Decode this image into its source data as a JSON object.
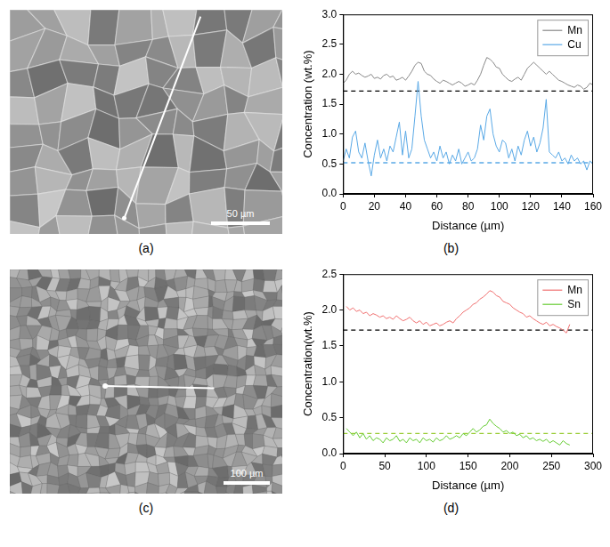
{
  "images": [
    {
      "label": "(a)",
      "scale_bar": "50 µm"
    },
    {
      "label": "(c)",
      "scale_bar": "100 µm"
    }
  ],
  "chart_data": [
    {
      "type": "line",
      "label": "(b)",
      "xlabel": "Distance (µm)",
      "ylabel": "Concentration (wt.%)",
      "x": [
        0,
        2,
        4,
        6,
        8,
        10,
        12,
        14,
        16,
        18,
        20,
        22,
        24,
        26,
        28,
        30,
        32,
        34,
        36,
        38,
        40,
        42,
        44,
        46,
        48,
        50,
        52,
        54,
        56,
        58,
        60,
        62,
        64,
        66,
        68,
        70,
        72,
        74,
        76,
        78,
        80,
        82,
        84,
        86,
        88,
        90,
        92,
        94,
        96,
        98,
        100,
        102,
        104,
        106,
        108,
        110,
        112,
        114,
        116,
        118,
        120,
        122,
        124,
        126,
        128,
        130,
        132,
        134,
        136,
        138,
        140,
        142,
        144,
        146,
        148,
        150,
        152,
        154,
        156,
        158,
        160
      ],
      "series": [
        {
          "name": "Mn",
          "color": "#888888",
          "values": [
            1.85,
            1.9,
            2.0,
            2.05,
            2.0,
            2.02,
            1.98,
            1.95,
            1.97,
            2.0,
            1.93,
            1.95,
            1.92,
            1.98,
            2.0,
            1.95,
            1.97,
            1.9,
            1.92,
            1.95,
            1.9,
            1.97,
            2.05,
            2.15,
            2.2,
            2.18,
            2.05,
            2.0,
            1.98,
            1.92,
            1.88,
            1.85,
            1.9,
            1.88,
            1.85,
            1.82,
            1.85,
            1.88,
            1.85,
            1.8,
            1.82,
            1.85,
            1.82,
            1.9,
            2.0,
            2.15,
            2.28,
            2.25,
            2.2,
            2.12,
            2.1,
            2.0,
            1.95,
            1.9,
            1.88,
            1.92,
            1.95,
            1.9,
            2.0,
            2.1,
            2.15,
            2.2,
            2.15,
            2.1,
            2.05,
            2.0,
            2.05,
            2.0,
            1.95,
            1.9,
            1.88,
            1.85,
            1.82,
            1.8,
            1.78,
            1.82,
            1.8,
            1.75,
            1.78,
            1.85,
            1.82
          ]
        },
        {
          "name": "Cu",
          "color": "#5aa9e6",
          "values": [
            0.55,
            0.75,
            0.6,
            0.95,
            1.05,
            0.7,
            0.6,
            0.85,
            0.55,
            0.3,
            0.65,
            0.9,
            0.6,
            0.75,
            0.55,
            0.8,
            0.7,
            0.95,
            1.2,
            0.65,
            1.05,
            0.6,
            0.75,
            1.3,
            1.88,
            1.3,
            0.9,
            0.75,
            0.6,
            0.7,
            0.55,
            0.8,
            0.6,
            0.7,
            0.5,
            0.65,
            0.55,
            0.75,
            0.5,
            0.6,
            0.7,
            0.55,
            0.6,
            0.75,
            1.15,
            0.9,
            1.3,
            1.42,
            1.0,
            0.8,
            0.7,
            0.9,
            0.85,
            0.6,
            0.75,
            0.55,
            0.8,
            0.65,
            0.9,
            1.05,
            0.8,
            0.95,
            0.7,
            0.85,
            1.1,
            1.58,
            0.7,
            0.65,
            0.6,
            0.7,
            0.55,
            0.6,
            0.5,
            0.65,
            0.55,
            0.6,
            0.5,
            0.55,
            0.4,
            0.55,
            0.5
          ]
        }
      ],
      "reference_lines": [
        {
          "value": 1.72,
          "color": "#000000",
          "line_style": "dashed"
        },
        {
          "value": 0.52,
          "color": "#5aa9e6",
          "line_style": "dashed"
        }
      ],
      "xlim": [
        0,
        160
      ],
      "xticks": [
        0,
        20,
        40,
        60,
        80,
        100,
        120,
        140,
        160
      ],
      "ylim": [
        0,
        3
      ],
      "yticks": [
        {
          "value": 0,
          "label": "0.0"
        },
        {
          "value": 0.5,
          "label": "0.5"
        },
        {
          "value": 1,
          "label": "1.0"
        },
        {
          "value": 1.5,
          "label": "1.5"
        },
        {
          "value": 2,
          "label": "2.0"
        },
        {
          "value": 2.5,
          "label": "2.5"
        },
        {
          "value": 3,
          "label": "3.0"
        }
      ],
      "legend": "upper right"
    },
    {
      "type": "line",
      "label": "(d)",
      "xlabel": "Distance (µm)",
      "ylabel": "Concentration(wt.%)",
      "x": [
        4,
        8,
        12,
        16,
        20,
        24,
        28,
        32,
        36,
        40,
        44,
        48,
        52,
        56,
        60,
        64,
        68,
        72,
        76,
        80,
        84,
        88,
        92,
        96,
        100,
        104,
        108,
        112,
        116,
        120,
        124,
        128,
        132,
        136,
        140,
        144,
        148,
        152,
        156,
        160,
        164,
        168,
        172,
        176,
        180,
        184,
        188,
        192,
        196,
        200,
        204,
        208,
        212,
        216,
        220,
        224,
        228,
        232,
        236,
        240,
        244,
        248,
        252,
        256,
        260,
        264,
        268,
        272
      ],
      "series": [
        {
          "name": "Mn",
          "color": "#f07070",
          "values": [
            2.05,
            2.0,
            2.03,
            1.98,
            2.0,
            1.95,
            1.97,
            1.92,
            1.95,
            1.93,
            1.9,
            1.92,
            1.88,
            1.9,
            1.87,
            1.92,
            1.88,
            1.85,
            1.87,
            1.9,
            1.85,
            1.82,
            1.85,
            1.8,
            1.83,
            1.78,
            1.8,
            1.82,
            1.78,
            1.8,
            1.83,
            1.85,
            1.82,
            1.88,
            1.92,
            1.97,
            2.0,
            2.03,
            2.08,
            2.1,
            2.15,
            2.18,
            2.22,
            2.27,
            2.25,
            2.2,
            2.18,
            2.12,
            2.1,
            2.08,
            2.03,
            2.0,
            1.97,
            1.95,
            1.9,
            1.92,
            1.88,
            1.85,
            1.82,
            1.8,
            1.83,
            1.78,
            1.8,
            1.77,
            1.75,
            1.72,
            1.68,
            1.8
          ]
        },
        {
          "name": "Sn",
          "color": "#66cc33",
          "values": [
            0.35,
            0.3,
            0.25,
            0.3,
            0.22,
            0.28,
            0.2,
            0.25,
            0.18,
            0.22,
            0.2,
            0.15,
            0.22,
            0.18,
            0.2,
            0.25,
            0.17,
            0.2,
            0.15,
            0.22,
            0.18,
            0.2,
            0.15,
            0.22,
            0.18,
            0.2,
            0.16,
            0.22,
            0.18,
            0.2,
            0.25,
            0.2,
            0.22,
            0.25,
            0.22,
            0.28,
            0.25,
            0.3,
            0.35,
            0.3,
            0.33,
            0.38,
            0.4,
            0.48,
            0.42,
            0.38,
            0.35,
            0.3,
            0.32,
            0.28,
            0.3,
            0.25,
            0.27,
            0.22,
            0.25,
            0.2,
            0.22,
            0.18,
            0.2,
            0.17,
            0.2,
            0.15,
            0.18,
            0.15,
            0.12,
            0.18,
            0.14,
            0.12
          ]
        }
      ],
      "reference_lines": [
        {
          "value": 1.72,
          "color": "#000000",
          "line_style": "dashed"
        },
        {
          "value": 0.28,
          "color": "#99cc33",
          "line_style": "dashed"
        }
      ],
      "xlim": [
        0,
        300
      ],
      "xticks": [
        0,
        50,
        100,
        150,
        200,
        250,
        300
      ],
      "ylim": [
        0,
        2.5
      ],
      "yticks": [
        {
          "value": 0,
          "label": "0.0"
        },
        {
          "value": 0.5,
          "label": "0.5"
        },
        {
          "value": 1,
          "label": "1.0"
        },
        {
          "value": 1.5,
          "label": "1.5"
        },
        {
          "value": 2,
          "label": "2.0"
        },
        {
          "value": 2.5,
          "label": "2.5"
        }
      ],
      "legend": "upper right"
    }
  ]
}
